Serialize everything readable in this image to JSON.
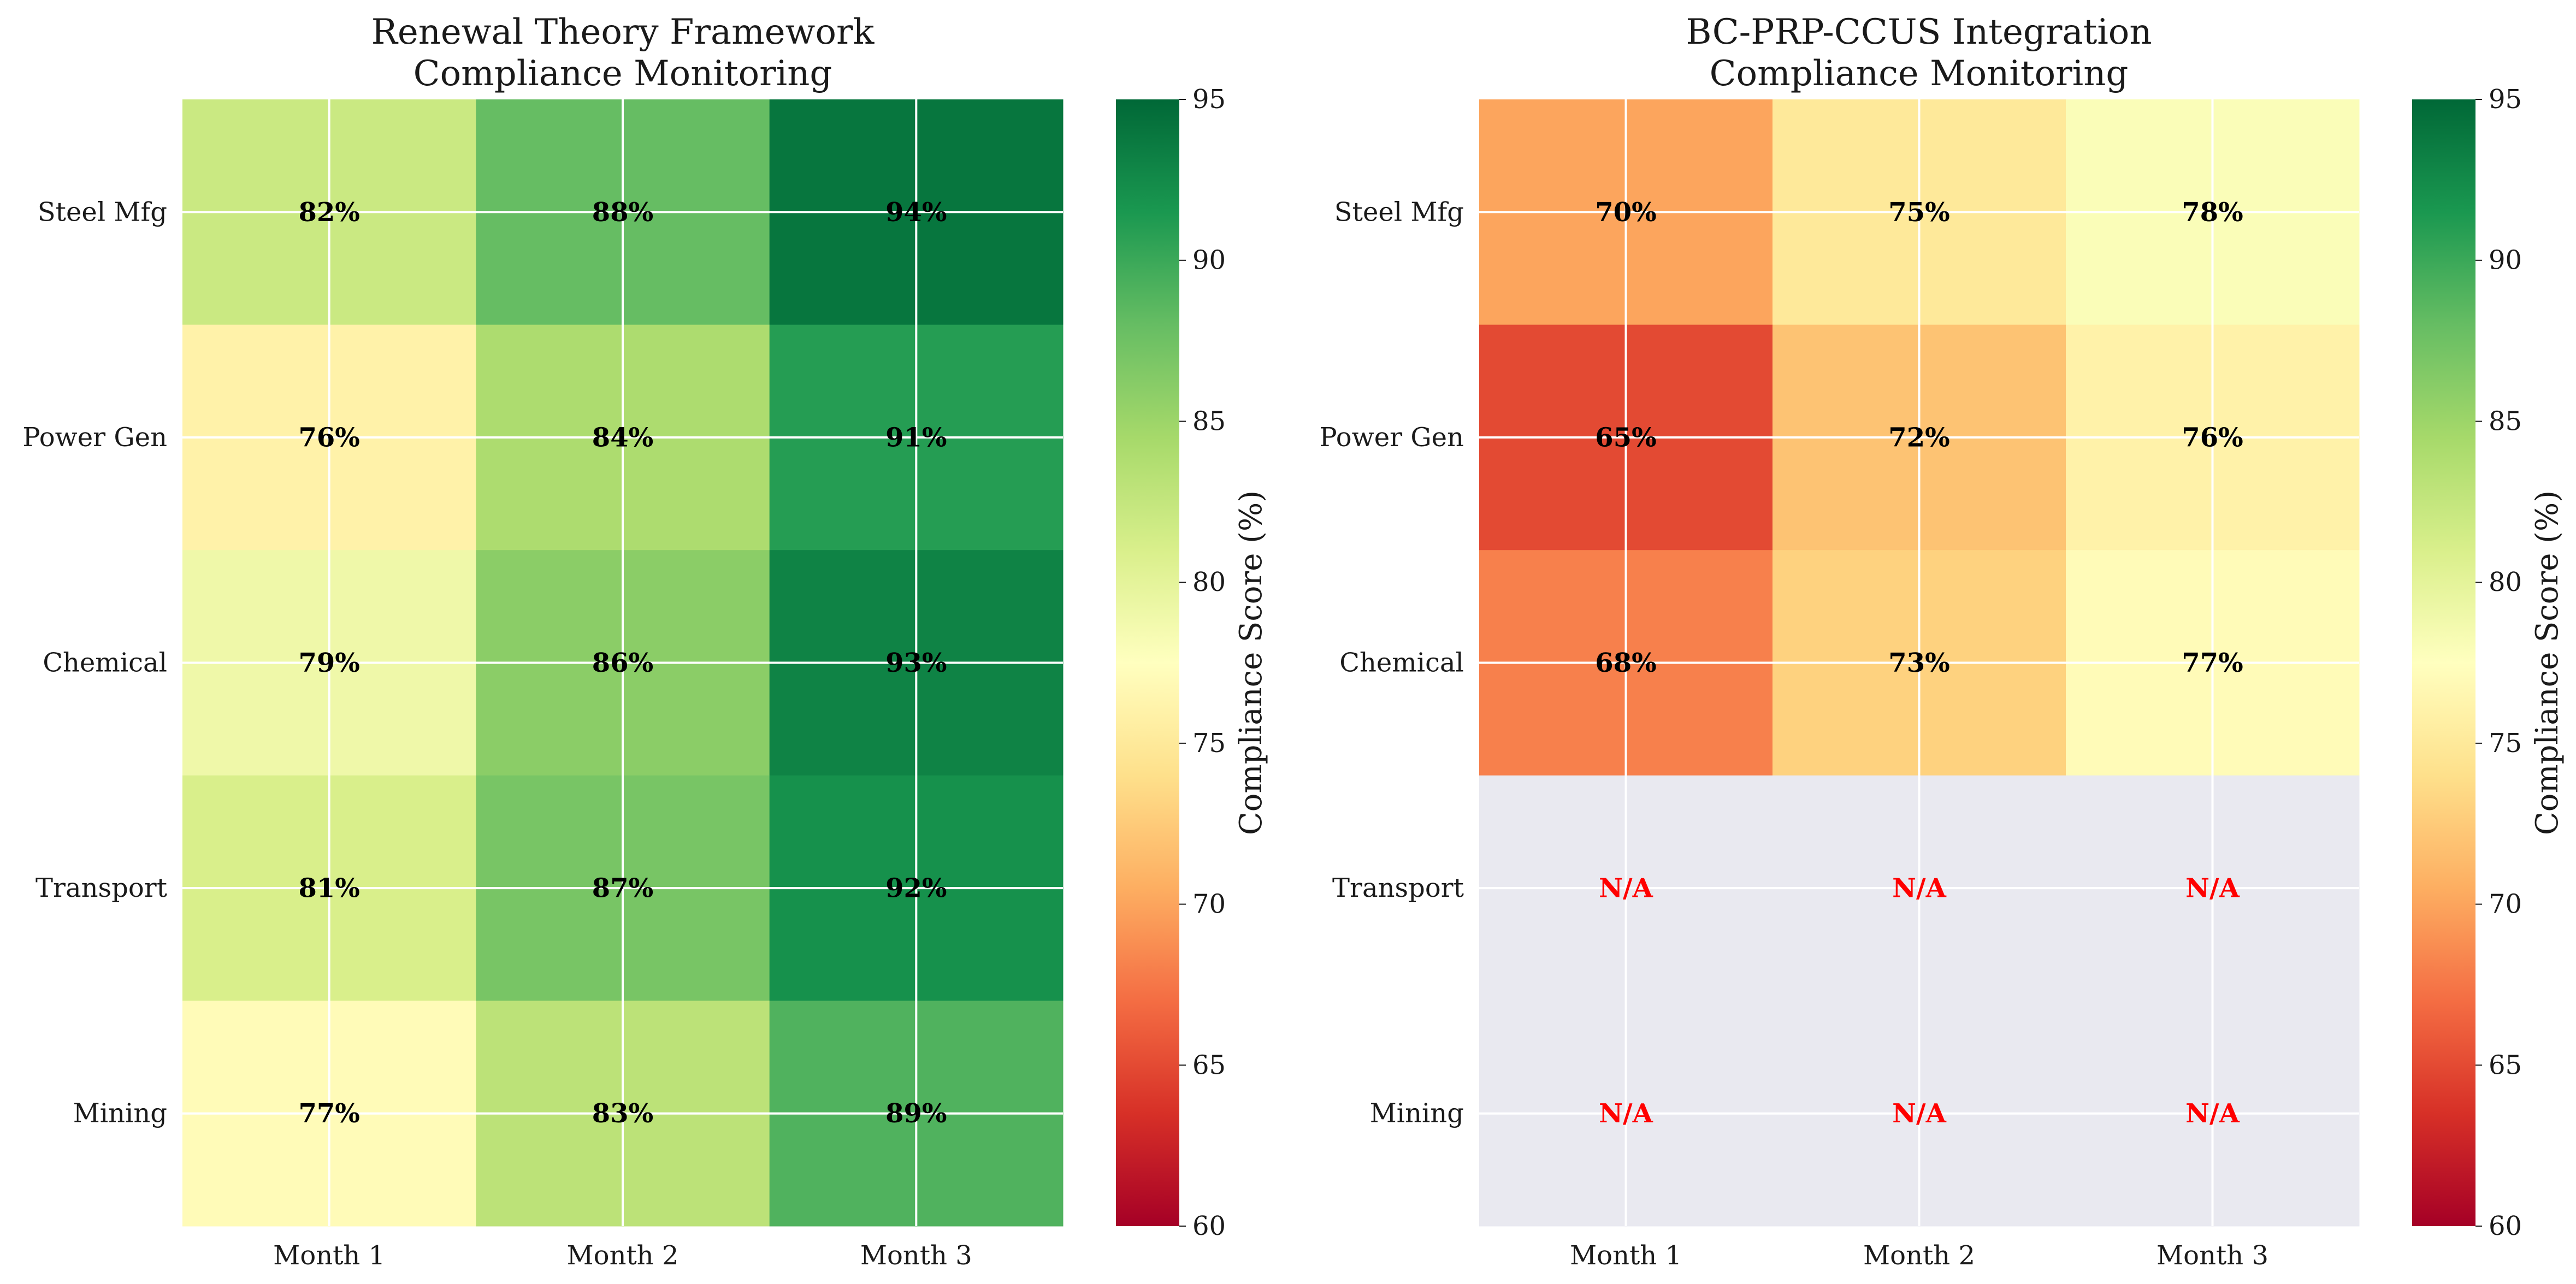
{
  "chart_data": [
    {
      "type": "heatmap",
      "title_lines": [
        "Renewal Theory Framework",
        "Compliance Monitoring"
      ],
      "x_categories": [
        "Month 1",
        "Month 2",
        "Month 3"
      ],
      "y_categories": [
        "Steel Mfg",
        "Power Gen",
        "Chemical",
        "Transport",
        "Mining"
      ],
      "values": [
        [
          82,
          88,
          94
        ],
        [
          76,
          84,
          91
        ],
        [
          79,
          86,
          93
        ],
        [
          81,
          87,
          92
        ],
        [
          77,
          83,
          89
        ]
      ],
      "labels": [
        [
          "82%",
          "88%",
          "94%"
        ],
        [
          "76%",
          "84%",
          "91%"
        ],
        [
          "79%",
          "86%",
          "93%"
        ],
        [
          "81%",
          "87%",
          "92%"
        ],
        [
          "77%",
          "83%",
          "89%"
        ]
      ],
      "colorbar": {
        "label": "Compliance Score (%)",
        "range": [
          60,
          95
        ],
        "ticks": [
          "60",
          "65",
          "70",
          "75",
          "80",
          "85",
          "90",
          "95"
        ],
        "colormap": "RdYlGn"
      },
      "grid": true
    },
    {
      "type": "heatmap",
      "title_lines": [
        "BC-PRP-CCUS Integration",
        "Compliance Monitoring"
      ],
      "x_categories": [
        "Month 1",
        "Month 2",
        "Month 3"
      ],
      "y_categories": [
        "Steel Mfg",
        "Power Gen",
        "Chemical",
        "Transport",
        "Mining"
      ],
      "values": [
        [
          70,
          75,
          78
        ],
        [
          65,
          72,
          76
        ],
        [
          68,
          73,
          77
        ],
        [
          null,
          null,
          null
        ],
        [
          null,
          null,
          null
        ]
      ],
      "labels": [
        [
          "70%",
          "75%",
          "78%"
        ],
        [
          "65%",
          "72%",
          "76%"
        ],
        [
          "68%",
          "73%",
          "77%"
        ],
        [
          "N/A",
          "N/A",
          "N/A"
        ],
        [
          "N/A",
          "N/A",
          "N/A"
        ]
      ],
      "colorbar": {
        "label": "Compliance Score (%)",
        "range": [
          60,
          95
        ],
        "ticks": [
          "60",
          "65",
          "70",
          "75",
          "80",
          "85",
          "90",
          "95"
        ],
        "colormap": "RdYlGn"
      },
      "grid": true
    }
  ],
  "colors": {
    "missing_fill": "#e9e9f0",
    "missing_text": "#ff0000",
    "value_text": "#000000",
    "gridline": "#ffffff"
  }
}
